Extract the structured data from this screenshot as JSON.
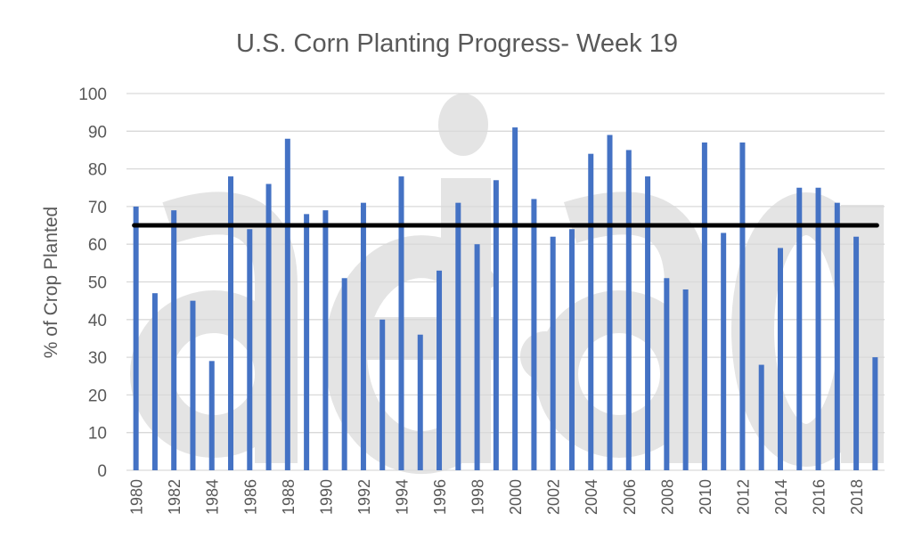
{
  "chart_data": {
    "type": "bar",
    "title": "U.S. Corn Planting Progress- Week 19",
    "xlabel": "",
    "ylabel": "% of Crop Planted",
    "ylim": [
      0,
      100
    ],
    "yticks": [
      0,
      10,
      20,
      30,
      40,
      50,
      60,
      70,
      80,
      90,
      100
    ],
    "grid": true,
    "watermark": "aei.ag",
    "categories": [
      1980,
      1981,
      1982,
      1983,
      1984,
      1985,
      1986,
      1987,
      1988,
      1989,
      1990,
      1991,
      1992,
      1993,
      1994,
      1995,
      1996,
      1997,
      1998,
      1999,
      2000,
      2001,
      2002,
      2003,
      2004,
      2005,
      2006,
      2007,
      2008,
      2009,
      2010,
      2011,
      2012,
      2013,
      2014,
      2015,
      2016,
      2017,
      2018,
      2019
    ],
    "xtick_labels": [
      "1980",
      "1982",
      "1984",
      "1986",
      "1988",
      "1990",
      "1992",
      "1994",
      "1996",
      "1998",
      "2000",
      "2002",
      "2004",
      "2006",
      "2008",
      "2010",
      "2012",
      "2014",
      "2016",
      "2018"
    ],
    "values": [
      70,
      47,
      69,
      45,
      29,
      78,
      64,
      76,
      88,
      68,
      69,
      51,
      71,
      40,
      78,
      36,
      53,
      71,
      60,
      77,
      91,
      72,
      62,
      64,
      84,
      89,
      85,
      78,
      51,
      48,
      87,
      63,
      87,
      28,
      59,
      75,
      75,
      71,
      62,
      30
    ],
    "reference_line": {
      "value": 65,
      "color": "#000000"
    },
    "bar_color": "#4472C4"
  }
}
